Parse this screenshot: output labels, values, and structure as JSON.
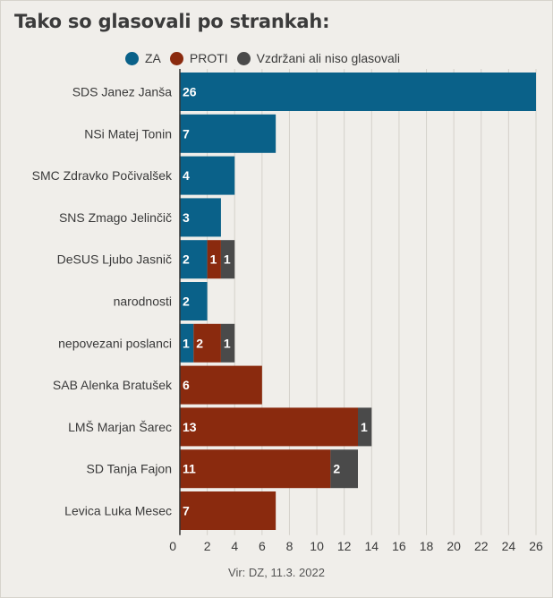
{
  "chart_data": {
    "type": "bar",
    "orientation": "horizontal",
    "stacked": true,
    "title": "Tako so glasovali po strankah:",
    "source": "Vir: DZ, 11.3. 2022",
    "categories": [
      "SDS Janez Janša",
      "NSi Matej Tonin",
      "SMC Zdravko Počivalšek",
      "SNS Zmago Jelinčič",
      "DeSUS Ljubo Jasnič",
      "narodnosti",
      "nepovezani poslanci",
      "SAB Alenka Bratušek",
      "LMŠ Marjan Šarec",
      "SD Tanja Fajon",
      "Levica Luka Mesec"
    ],
    "series": [
      {
        "name": "ZA",
        "color": "#0a6189",
        "values": [
          26,
          7,
          4,
          3,
          2,
          2,
          1,
          0,
          0,
          0,
          0
        ]
      },
      {
        "name": "PROTI",
        "color": "#8a2a0e",
        "values": [
          0,
          0,
          0,
          0,
          1,
          0,
          2,
          6,
          13,
          11,
          7
        ]
      },
      {
        "name": "Vzdržani ali niso glasovali",
        "color": "#4a4a4a",
        "values": [
          0,
          0,
          0,
          0,
          1,
          0,
          1,
          0,
          1,
          2,
          0
        ]
      }
    ],
    "xlim": [
      0,
      26
    ],
    "xticks": [
      0,
      2,
      4,
      6,
      8,
      10,
      12,
      14,
      16,
      18,
      20,
      22,
      24,
      26
    ],
    "legend_position": "top",
    "grid": true
  }
}
